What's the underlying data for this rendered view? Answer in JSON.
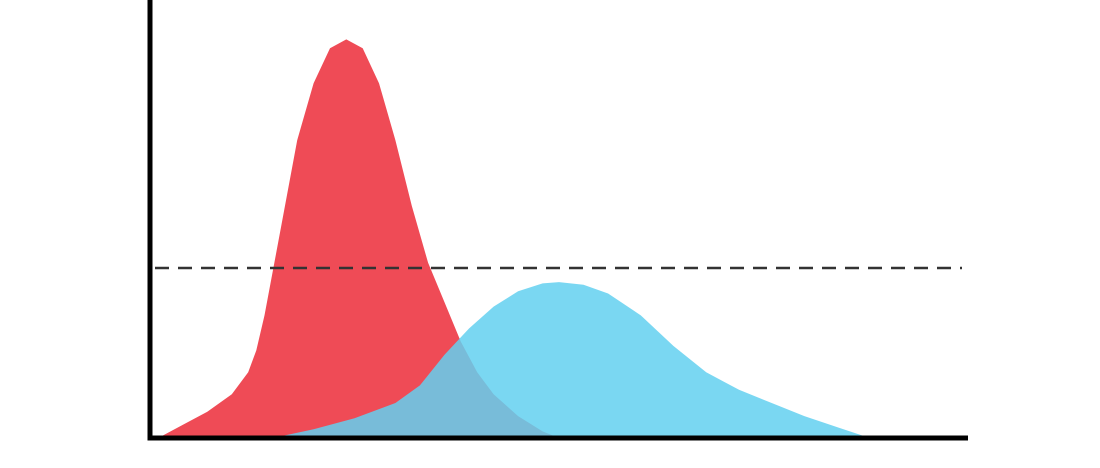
{
  "chart_data": {
    "type": "area",
    "xlim": [
      0,
      100
    ],
    "ylim": [
      0,
      100
    ],
    "series": [
      {
        "color": "#ef4b56",
        "x": [
          1,
          4,
          7,
          10,
          12,
          13,
          14,
          16,
          18,
          20,
          22,
          24,
          26,
          28,
          30,
          32,
          34,
          36,
          38,
          40,
          42,
          45,
          48,
          50
        ],
        "values": [
          0,
          3,
          6,
          10,
          15,
          20,
          28,
          48,
          68,
          81,
          89,
          91,
          89,
          81,
          68,
          53,
          40,
          31,
          22,
          15,
          10,
          5,
          1.5,
          0
        ]
      },
      {
        "color": "#63d0f0",
        "opacity": 0.85,
        "x": [
          15,
          20,
          25,
          30,
          33,
          36,
          39,
          42,
          45,
          48,
          50,
          53,
          56,
          60,
          64,
          68,
          72,
          76,
          80,
          84,
          88
        ],
        "values": [
          0,
          2,
          4.5,
          8,
          12,
          19,
          25,
          30,
          33.5,
          35.3,
          35.6,
          35,
          33,
          28,
          21,
          15,
          11,
          8,
          5,
          2.5,
          0
        ]
      }
    ],
    "hline": {
      "value": 38.8,
      "color": "#333333"
    }
  }
}
